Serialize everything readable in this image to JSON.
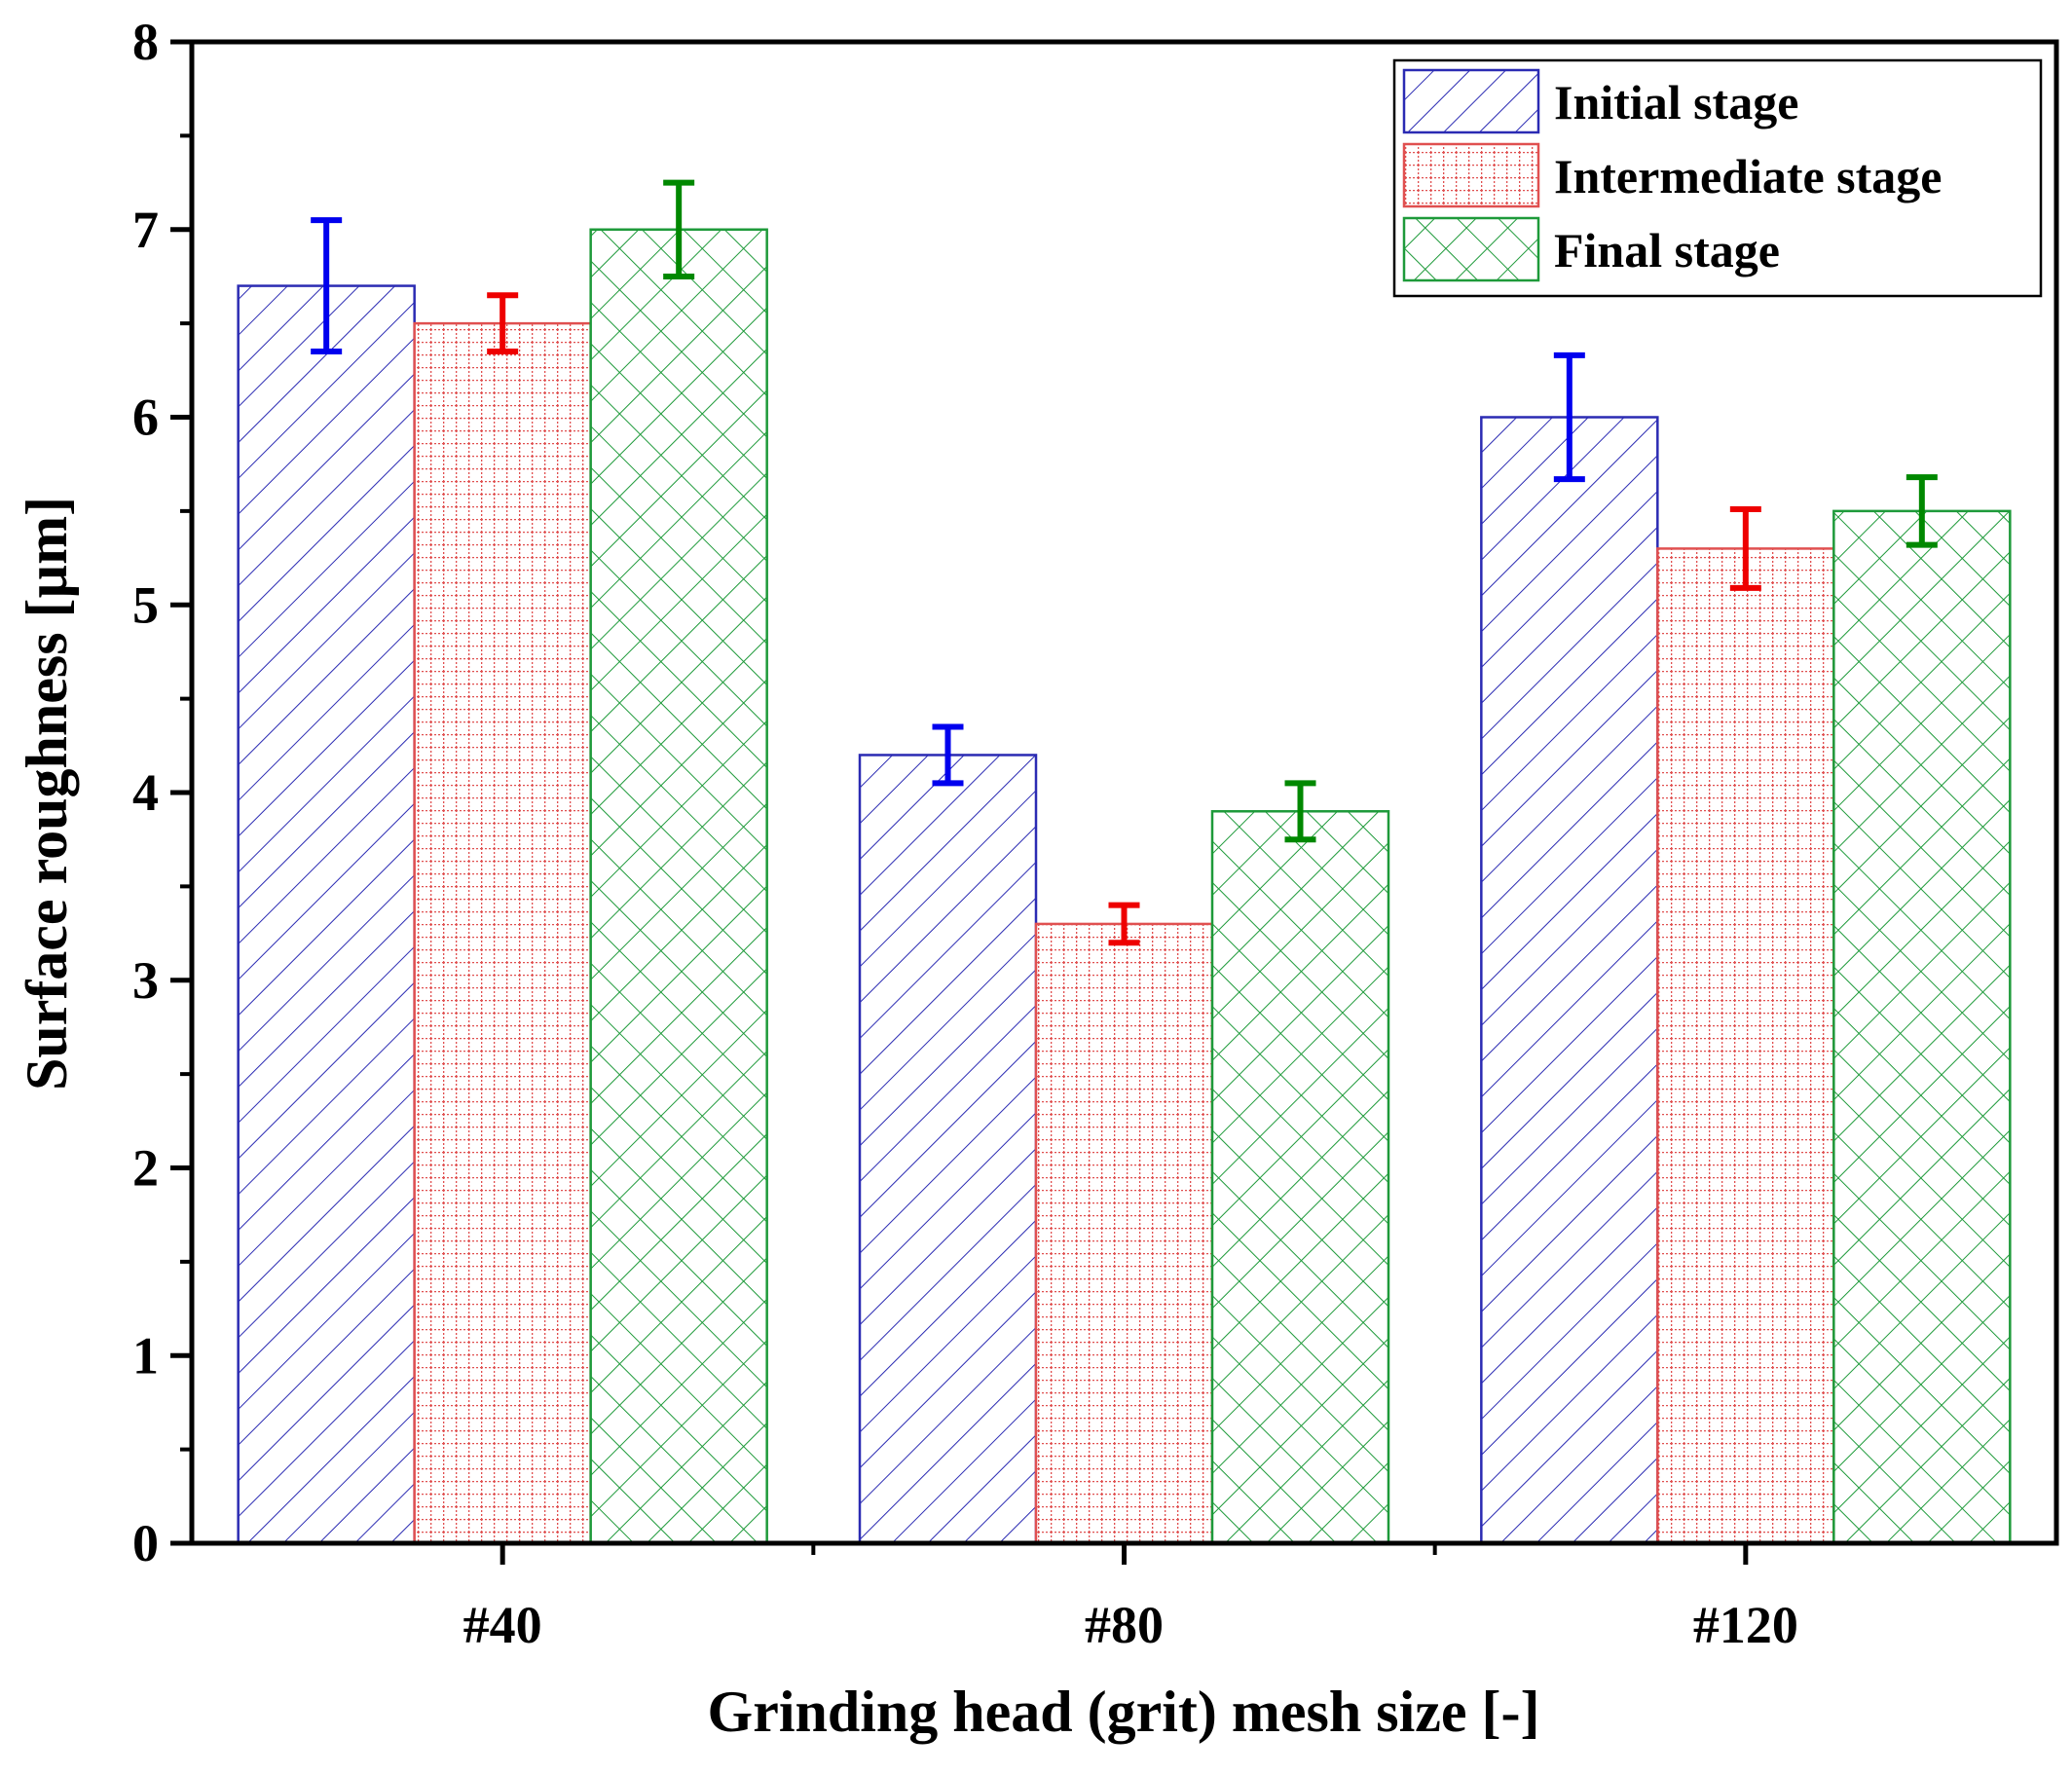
{
  "chart_data": {
    "type": "bar",
    "title": "",
    "xlabel": "Grinding head (grit) mesh size [-]",
    "ylabel": "Surface roughness [µm]",
    "ylim": [
      0,
      8
    ],
    "yticks": [
      "0",
      "1",
      "2",
      "3",
      "4",
      "5",
      "6",
      "7",
      "8"
    ],
    "categories": [
      "#40",
      "#80",
      "#120"
    ],
    "legend_position": "top-right",
    "series": [
      {
        "name": "Initial stage",
        "color": "#2b2bb3",
        "error_color": "#0000ee",
        "pattern": "diagonal-hatch",
        "values": [
          6.7,
          4.2,
          6.0
        ],
        "errors": [
          0.35,
          0.15,
          0.33
        ]
      },
      {
        "name": "Intermediate stage",
        "color": "#e05050",
        "error_color": "#ee0000",
        "pattern": "dotted-grid",
        "values": [
          6.5,
          3.3,
          5.3
        ],
        "errors": [
          0.15,
          0.1,
          0.21
        ]
      },
      {
        "name": "Final stage",
        "color": "#1e9a3a",
        "error_color": "#008800",
        "pattern": "cross-hatch",
        "values": [
          7.0,
          3.9,
          5.5
        ],
        "errors": [
          0.25,
          0.15,
          0.18
        ]
      }
    ]
  }
}
